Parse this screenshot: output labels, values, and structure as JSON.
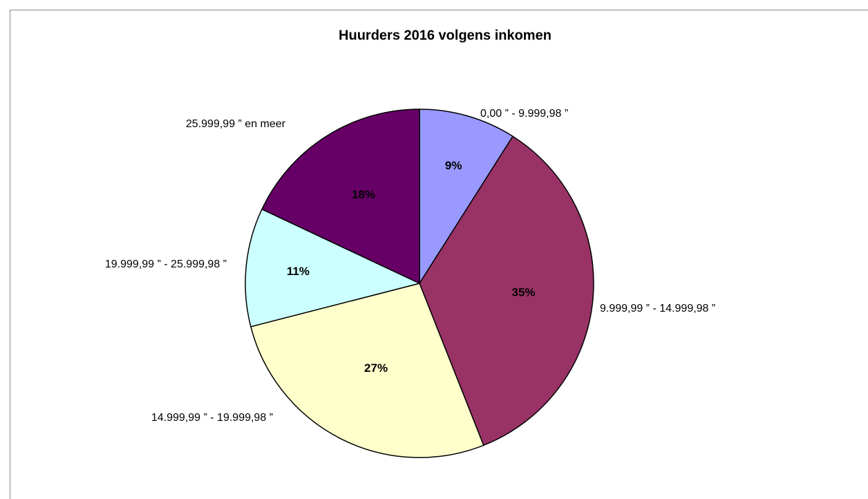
{
  "chart_data": {
    "type": "pie",
    "title": "Huurders 2016 volgens inkomen",
    "categories": [
      "0,00 ” - 9.999,98 ”",
      "9.999,99 ” - 14.999,98 ”",
      "14.999,99 ” - 19.999,98 ”",
      "19.999,99 ” - 25.999,98 ”",
      "25.999,99 ” en meer"
    ],
    "values": [
      9,
      35,
      27,
      11,
      18
    ],
    "value_labels": [
      "9%",
      "35%",
      "27%",
      "11%",
      "18%"
    ],
    "colors": [
      "#9999ff",
      "#993366",
      "#ffffcc",
      "#ccffff",
      "#660066"
    ]
  }
}
